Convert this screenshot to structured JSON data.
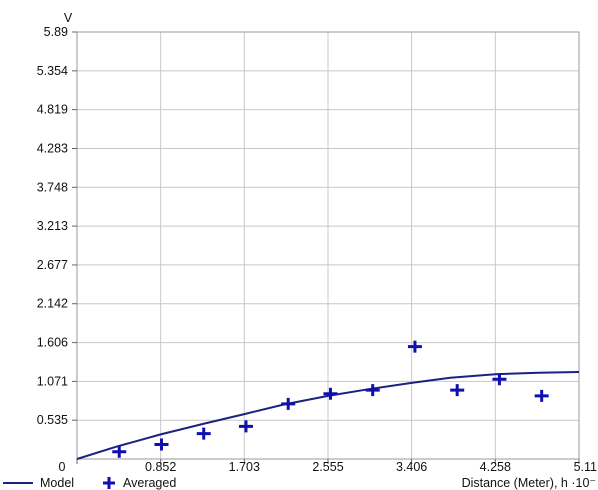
{
  "chart_data": {
    "type": "scatter",
    "ylabel": "V",
    "xlabel": "Distance (Meter), h ·10⁻",
    "xlim": [
      0,
      5.11
    ],
    "ylim": [
      0,
      5.89
    ],
    "x_tick_labels": [
      "0",
      "0.852",
      "1.703",
      "2.555",
      "3.406",
      "4.258",
      "5.11"
    ],
    "y_tick_labels": [
      "0.535",
      "1.071",
      "1.606",
      "2.142",
      "2.677",
      "3.213",
      "3.748",
      "4.283",
      "4.819",
      "5.354",
      "5.89"
    ],
    "x_ticks": [
      0,
      0.852,
      1.703,
      2.555,
      3.406,
      4.258,
      5.11
    ],
    "y_ticks": [
      0.535,
      1.071,
      1.606,
      2.142,
      2.677,
      3.213,
      3.748,
      4.283,
      4.819,
      5.354,
      5.89
    ],
    "grid": true,
    "legend_position": "bottom-left",
    "series": [
      {
        "name": "Model",
        "kind": "line",
        "color": "#1a237e",
        "x": [
          0,
          0.4,
          0.852,
          1.3,
          1.703,
          2.1,
          2.555,
          3.0,
          3.406,
          3.8,
          4.258,
          4.7,
          5.11
        ],
        "y": [
          0,
          0.17,
          0.34,
          0.49,
          0.62,
          0.75,
          0.87,
          0.97,
          1.05,
          1.12,
          1.17,
          1.19,
          1.2
        ]
      },
      {
        "name": "Averaged",
        "kind": "points",
        "color": "#1010b0",
        "x": [
          0.43,
          0.86,
          1.29,
          1.72,
          2.15,
          2.58,
          3.01,
          3.44,
          3.87,
          4.3,
          4.73
        ],
        "y": [
          0.1,
          0.2,
          0.35,
          0.45,
          0.76,
          0.9,
          0.95,
          1.55,
          0.95,
          1.1,
          0.87
        ]
      }
    ]
  }
}
